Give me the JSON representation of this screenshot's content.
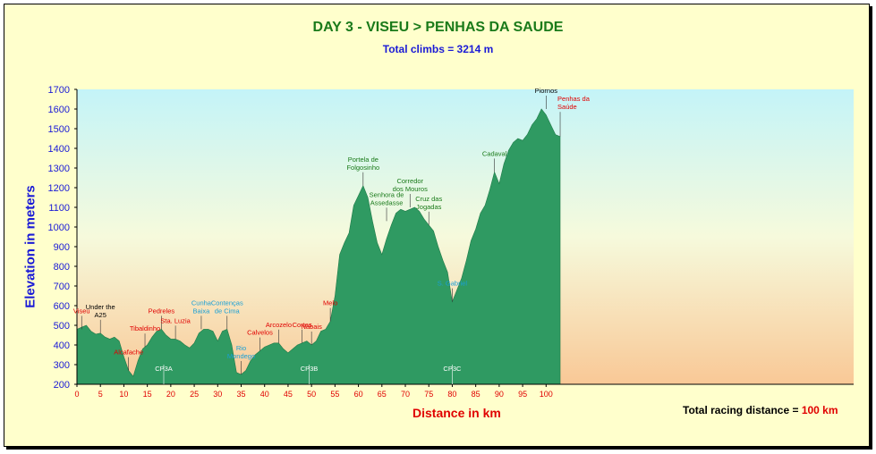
{
  "chart_data": {
    "type": "area",
    "title": "DAY 3 - VISEU > PENHAS DA SAUDE",
    "subtitle": "Total climbs = 3214 m",
    "xlabel": "Distance in km",
    "ylabel": "Elevation in meters",
    "xlim": [
      0,
      103
    ],
    "ylim": [
      200,
      1700
    ],
    "x_ticks": [
      0,
      5,
      10,
      15,
      20,
      25,
      30,
      35,
      40,
      45,
      50,
      55,
      60,
      65,
      70,
      75,
      80,
      85,
      90,
      95,
      100
    ],
    "y_ticks": [
      200,
      300,
      400,
      500,
      600,
      700,
      800,
      900,
      1000,
      1100,
      1200,
      1300,
      1400,
      1500,
      1600,
      1700
    ],
    "series": [
      {
        "x": [
          0,
          1,
          2,
          3,
          4,
          5,
          6,
          7,
          8,
          9,
          10,
          11,
          12,
          13,
          14,
          15,
          16,
          17,
          18,
          19,
          20,
          21,
          22,
          23,
          24,
          25,
          26,
          27,
          28,
          29,
          30,
          31,
          32,
          33,
          34,
          35,
          36,
          37,
          38,
          39,
          40,
          41,
          42,
          43,
          44,
          45,
          46,
          47,
          48,
          49,
          50,
          51,
          52,
          53,
          54,
          55,
          56,
          57,
          58,
          59,
          60,
          61,
          62,
          63,
          64,
          65,
          66,
          67,
          68,
          69,
          70,
          71,
          72,
          73,
          74,
          75,
          76,
          77,
          78,
          79,
          80,
          81,
          82,
          83,
          84,
          85,
          86,
          87,
          88,
          89,
          90,
          91,
          92,
          93,
          94,
          95,
          96,
          97,
          98,
          99,
          100,
          101,
          102,
          103
        ],
        "y": [
          480,
          490,
          500,
          470,
          455,
          460,
          440,
          430,
          440,
          420,
          340,
          270,
          240,
          320,
          380,
          400,
          440,
          470,
          480,
          450,
          430,
          430,
          420,
          400,
          385,
          410,
          460,
          480,
          480,
          470,
          420,
          470,
          480,
          400,
          260,
          250,
          270,
          320,
          350,
          370,
          390,
          400,
          410,
          410,
          380,
          360,
          380,
          400,
          410,
          420,
          400,
          420,
          470,
          480,
          520,
          650,
          860,
          920,
          970,
          1110,
          1160,
          1210,
          1150,
          1030,
          920,
          860,
          940,
          1010,
          1070,
          1090,
          1080,
          1090,
          1100,
          1080,
          1040,
          1010,
          980,
          900,
          830,
          770,
          620,
          680,
          740,
          830,
          930,
          990,
          1070,
          1110,
          1190,
          1280,
          1220,
          1320,
          1390,
          1430,
          1450,
          1440,
          1470,
          1520,
          1550,
          1600,
          1570,
          1520,
          1470,
          1460
        ]
      }
    ],
    "annotations": [
      {
        "text": "Viseu",
        "x": 1,
        "y": 480,
        "color": "#e00000"
      },
      {
        "text": "Under the|A25",
        "x": 5,
        "y": 460,
        "color": "#000000"
      },
      {
        "text": "Alcafache",
        "x": 11,
        "y": 270,
        "color": "#e00000"
      },
      {
        "text": "Tibaldinho",
        "x": 14.5,
        "y": 390,
        "color": "#e00000"
      },
      {
        "text": "Pedreles",
        "x": 18,
        "y": 480,
        "color": "#e00000"
      },
      {
        "text": "Sta. Luzia",
        "x": 21,
        "y": 430,
        "color": "#e00000"
      },
      {
        "text": "Cunha|Baixa",
        "x": 26.5,
        "y": 480,
        "color": "#1a9fd6"
      },
      {
        "text": "Contenças|de Cima",
        "x": 32,
        "y": 480,
        "color": "#1a9fd6"
      },
      {
        "text": "Rio|Mondego",
        "x": 35,
        "y": 250,
        "color": "#1a9fd6"
      },
      {
        "text": "Calvelos",
        "x": 39,
        "y": 370,
        "color": "#e00000"
      },
      {
        "text": "Arcozelo",
        "x": 43,
        "y": 410,
        "color": "#e00000"
      },
      {
        "text": "Nabais",
        "x": 50,
        "y": 400,
        "color": "#e00000"
      },
      {
        "text": "Cortes",
        "x": 48,
        "y": 410,
        "color": "#e00000"
      },
      {
        "text": "Melo",
        "x": 54,
        "y": 520,
        "color": "#e00000"
      },
      {
        "text": "Portela de|Folgosinho",
        "x": 61,
        "y": 1210,
        "color": "#1a7a1a"
      },
      {
        "text": "Senhora de|Assedasse",
        "x": 66,
        "y": 1030,
        "color": "#1a7a1a"
      },
      {
        "text": "Corredor|dos Mouros",
        "x": 71,
        "y": 1100,
        "color": "#1a7a1a"
      },
      {
        "text": "Cruz das|Jogadas",
        "x": 75,
        "y": 1010,
        "color": "#1a7a1a"
      },
      {
        "text": "S. Gabriel",
        "x": 80,
        "y": 620,
        "color": "#1a9fd6"
      },
      {
        "text": "Cadaval",
        "x": 89,
        "y": 1280,
        "color": "#1a7a1a"
      },
      {
        "text": "Piornos",
        "x": 100,
        "y": 1600,
        "color": "#000000"
      },
      {
        "text": "Penhas da|Saúde",
        "x": 103,
        "y": 1460,
        "color": "#e00000"
      }
    ],
    "checkpoints": [
      {
        "text": "CP3A",
        "x": 18.5
      },
      {
        "text": "CP3B",
        "x": 49.5
      },
      {
        "text": "CP3C",
        "x": 80
      }
    ],
    "grid": false
  },
  "footer": {
    "distance_label": "Total racing distance = ",
    "distance_value": "100 km"
  }
}
